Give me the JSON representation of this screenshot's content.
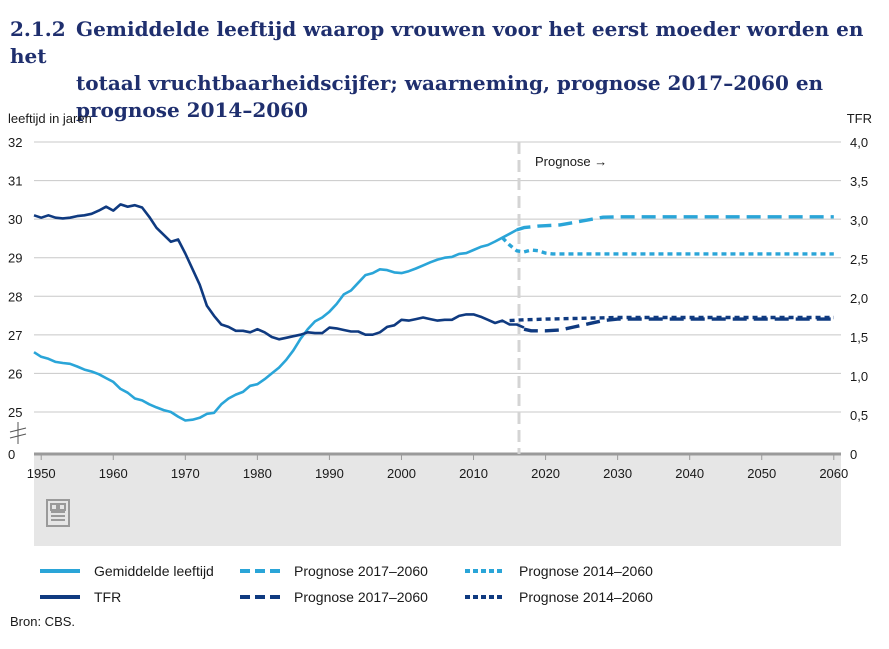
{
  "title": {
    "number": "2.1.2",
    "line1": "Gemiddelde leeftijd waarop vrouwen voor het eerst moeder worden en het",
    "line2": "totaal vruchtbaarheidscijfer; waarneming, prognose 2017–2060 en",
    "line3": "prognose 2014–2060"
  },
  "source": "Bron: CBS.",
  "colors": {
    "light": "#2aa5d8",
    "dark": "#0f3a80",
    "grid": "#c8c8c8",
    "band": "#e6e6e6",
    "vline": "#d4d4d4"
  },
  "logo_icon": "cbs-logo-icon",
  "chart_data": {
    "type": "line",
    "ylabel_left": "leeftijd in jaren",
    "ylabel_right": "TFR",
    "annotation": "Prognose →",
    "x_ticks": [
      "1950",
      "1960",
      "1970",
      "1980",
      "1990",
      "2000",
      "2010",
      "2020",
      "2030",
      "2040",
      "2050",
      "2060"
    ],
    "x_range": [
      1949,
      2061
    ],
    "y_left_ticks": [
      "0",
      "25",
      "26",
      "27",
      "28",
      "29",
      "30",
      "31",
      "32"
    ],
    "y_right_ticks": [
      "0",
      "0,5",
      "1,0",
      "1,5",
      "2,0",
      "2,5",
      "3,0",
      "3,5",
      "4,0"
    ],
    "y_right_range": [
      0,
      4
    ],
    "prognose_start": 2016,
    "axis_break": true,
    "series": [
      {
        "name": "Gemiddelde leeftijd",
        "axis": "left",
        "style": "solid",
        "color": "light",
        "x": [
          1949,
          1950,
          1951,
          1952,
          1953,
          1954,
          1955,
          1956,
          1957,
          1958,
          1959,
          1960,
          1961,
          1962,
          1963,
          1964,
          1965,
          1966,
          1967,
          1968,
          1969,
          1970,
          1971,
          1972,
          1973,
          1974,
          1975,
          1976,
          1977,
          1978,
          1979,
          1980,
          1981,
          1982,
          1983,
          1984,
          1985,
          1986,
          1987,
          1988,
          1989,
          1990,
          1991,
          1992,
          1993,
          1994,
          1995,
          1996,
          1997,
          1998,
          1999,
          2000,
          2001,
          2002,
          2003,
          2004,
          2005,
          2006,
          2007,
          2008,
          2009,
          2010,
          2011,
          2012,
          2013,
          2014,
          2015,
          2016
        ],
        "values": [
          26.55,
          26.43,
          26.38,
          26.3,
          26.27,
          26.25,
          26.18,
          26.1,
          26.05,
          25.98,
          25.88,
          25.78,
          25.6,
          25.5,
          25.35,
          25.3,
          25.2,
          25.12,
          25.05,
          25.0,
          24.88,
          24.78,
          24.8,
          24.85,
          24.95,
          24.98,
          25.2,
          25.35,
          25.45,
          25.52,
          25.68,
          25.72,
          25.85,
          26.0,
          26.15,
          26.35,
          26.6,
          26.9,
          27.15,
          27.35,
          27.45,
          27.6,
          27.8,
          28.05,
          28.15,
          28.35,
          28.55,
          28.6,
          28.7,
          28.68,
          28.62,
          28.6,
          28.65,
          28.72,
          28.8,
          28.88,
          28.95,
          29.0,
          29.02,
          29.1,
          29.12,
          29.2,
          29.28,
          29.33,
          29.42,
          29.52,
          29.62,
          29.72
        ]
      },
      {
        "name": "TFR",
        "axis": "right",
        "style": "solid",
        "color": "dark",
        "x": [
          1949,
          1950,
          1951,
          1952,
          1953,
          1954,
          1955,
          1956,
          1957,
          1958,
          1959,
          1960,
          1961,
          1962,
          1963,
          1964,
          1965,
          1966,
          1967,
          1968,
          1969,
          1970,
          1971,
          1972,
          1973,
          1974,
          1975,
          1976,
          1977,
          1978,
          1979,
          1980,
          1981,
          1982,
          1983,
          1984,
          1985,
          1986,
          1987,
          1988,
          1989,
          1990,
          1991,
          1992,
          1993,
          1994,
          1995,
          1996,
          1997,
          1998,
          1999,
          2000,
          2001,
          2002,
          2003,
          2004,
          2005,
          2006,
          2007,
          2008,
          2009,
          2010,
          2011,
          2012,
          2013,
          2014,
          2015,
          2016,
          2017
        ],
        "values": [
          3.06,
          3.03,
          3.06,
          3.03,
          3.02,
          3.03,
          3.05,
          3.06,
          3.08,
          3.12,
          3.17,
          3.12,
          3.2,
          3.17,
          3.19,
          3.16,
          3.04,
          2.9,
          2.81,
          2.72,
          2.75,
          2.57,
          2.37,
          2.17,
          1.9,
          1.77,
          1.66,
          1.63,
          1.58,
          1.58,
          1.56,
          1.6,
          1.56,
          1.5,
          1.47,
          1.49,
          1.51,
          1.53,
          1.56,
          1.55,
          1.55,
          1.62,
          1.61,
          1.59,
          1.57,
          1.57,
          1.53,
          1.53,
          1.56,
          1.63,
          1.65,
          1.72,
          1.71,
          1.73,
          1.75,
          1.73,
          1.71,
          1.72,
          1.72,
          1.77,
          1.79,
          1.79,
          1.76,
          1.72,
          1.68,
          1.71,
          1.66,
          1.66,
          1.62
        ]
      },
      {
        "name": "Prognose 2017–2060",
        "axis": "left",
        "style": "dashed",
        "color": "light",
        "x": [
          2016,
          2017,
          2018,
          2019,
          2020,
          2022,
          2025,
          2028,
          2030,
          2040,
          2050,
          2060
        ],
        "values": [
          29.72,
          29.78,
          29.8,
          29.82,
          29.83,
          29.85,
          29.95,
          30.05,
          30.06,
          30.06,
          30.06,
          30.06
        ]
      },
      {
        "name": "Prognose 2017–2060",
        "axis": "right",
        "style": "dashed",
        "color": "dark",
        "x": [
          2017,
          2018,
          2020,
          2022,
          2024,
          2026,
          2028,
          2030,
          2040,
          2050,
          2060
        ],
        "values": [
          1.6,
          1.58,
          1.58,
          1.59,
          1.63,
          1.67,
          1.71,
          1.73,
          1.73,
          1.73,
          1.73
        ]
      },
      {
        "name": "Prognose 2014–2060",
        "axis": "left",
        "style": "dotted",
        "color": "light",
        "x": [
          2014,
          2015,
          2016,
          2017,
          2018,
          2019,
          2020,
          2021,
          2022,
          2030,
          2040,
          2050,
          2060
        ],
        "values": [
          29.52,
          29.33,
          29.18,
          29.15,
          29.2,
          29.18,
          29.12,
          29.1,
          29.1,
          29.1,
          29.1,
          29.1,
          29.1
        ]
      },
      {
        "name": "Prognose 2014–2060",
        "axis": "right",
        "style": "dotted",
        "color": "dark",
        "x": [
          2015,
          2017,
          2020,
          2025,
          2030,
          2040,
          2050,
          2060
        ],
        "values": [
          1.71,
          1.72,
          1.73,
          1.74,
          1.75,
          1.75,
          1.75,
          1.75
        ]
      }
    ]
  }
}
